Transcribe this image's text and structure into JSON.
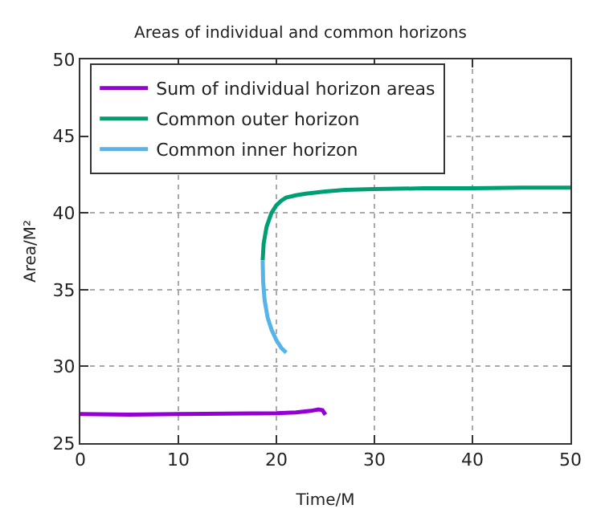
{
  "chart_data": {
    "type": "line",
    "title": "Areas of individual and common horizons",
    "xlabel": "Time/M",
    "ylabel": "Area/M²",
    "xlim": [
      0,
      50
    ],
    "xticks": [
      0,
      10,
      20,
      30,
      40,
      50
    ],
    "ylim": [
      25,
      50
    ],
    "yticks": [
      25,
      30,
      35,
      40,
      45,
      50
    ],
    "grid": true,
    "legend": "top left",
    "marker": "none",
    "line_style": "solid",
    "series": [
      {
        "name": "Sum of individual horizon areas",
        "color": "#9400d3",
        "x": [
          0,
          5,
          10,
          15,
          20,
          22,
          23.5,
          24.3,
          24.7,
          25
        ],
        "values": [
          26.9,
          26.85,
          26.9,
          26.92,
          26.95,
          27.0,
          27.1,
          27.2,
          27.15,
          26.85
        ]
      },
      {
        "name": "Common outer horizon",
        "color": "#009e73",
        "x": [
          18.6,
          18.7,
          19,
          19.5,
          20,
          20.5,
          21,
          22,
          23,
          25,
          27,
          30,
          35,
          40,
          45,
          50
        ],
        "values": [
          36.9,
          38.0,
          39.1,
          40.0,
          40.5,
          40.8,
          41.0,
          41.15,
          41.25,
          41.4,
          41.5,
          41.55,
          41.6,
          41.6,
          41.65,
          41.65
        ]
      },
      {
        "name": "Common inner horizon",
        "color": "#56b4e9",
        "x": [
          18.6,
          18.65,
          18.8,
          19.1,
          19.5,
          20,
          20.5,
          21
        ],
        "values": [
          36.9,
          35.5,
          34.3,
          33.2,
          32.4,
          31.7,
          31.2,
          30.9
        ]
      }
    ]
  }
}
